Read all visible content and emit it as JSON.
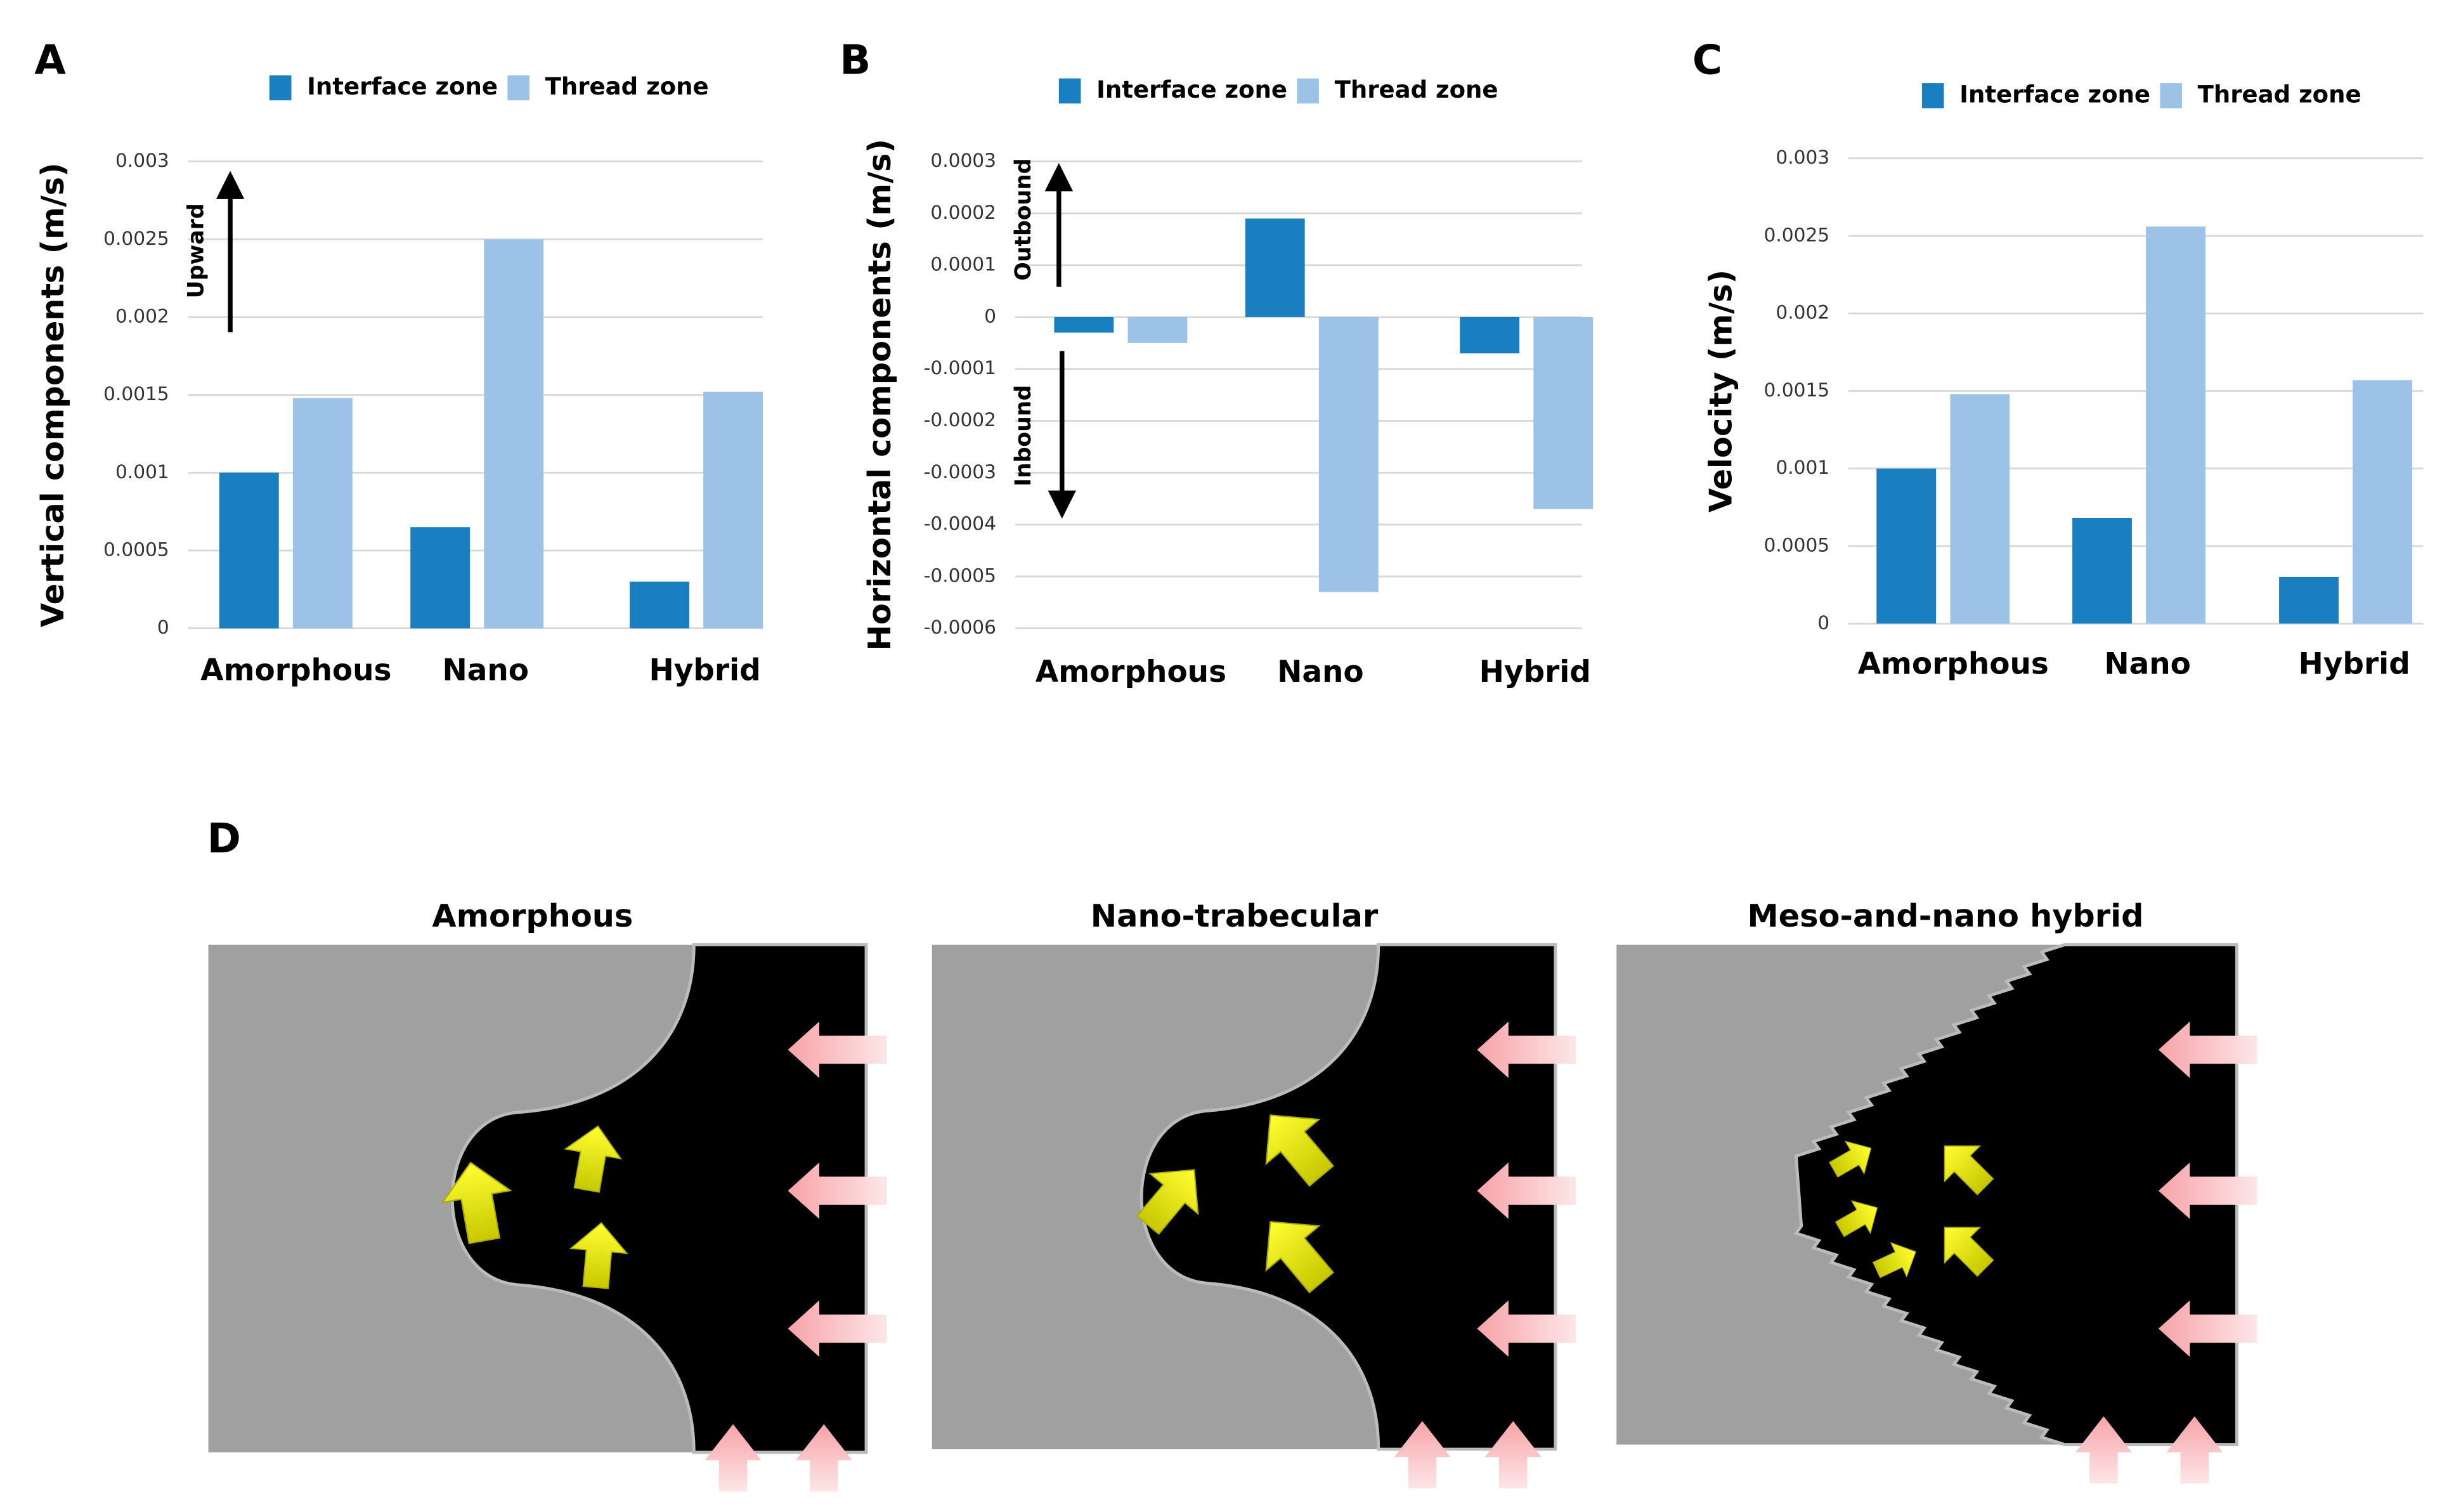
{
  "chart_data": [
    {
      "type": "bar",
      "panel": "A",
      "y_label": "Vertical components (m/s)",
      "categories": [
        "Amorphous",
        "Nano",
        "Hybrid"
      ],
      "series": [
        {
          "name": "Interface zone",
          "color": "#1a7fc1",
          "values": [
            0.001,
            0.00065,
            0.0003
          ]
        },
        {
          "name": "Thread zone",
          "color": "#9cc3e7",
          "values": [
            0.00148,
            0.0025,
            0.00152
          ]
        }
      ],
      "ylim": [
        0,
        0.003
      ],
      "yticks": [
        0,
        0.0005,
        0.001,
        0.0015,
        0.002,
        0.0025,
        0.003
      ],
      "grid": true,
      "annotations": [
        "Upward"
      ]
    },
    {
      "type": "bar",
      "panel": "B",
      "y_label": "Horizontal components (m/s)",
      "categories": [
        "Amorphous",
        "Nano",
        "Hybrid"
      ],
      "series": [
        {
          "name": "Interface zone",
          "color": "#1a7fc1",
          "values": [
            -3e-05,
            0.00019,
            -7e-05
          ]
        },
        {
          "name": "Thread zone",
          "color": "#9cc3e7",
          "values": [
            -5e-05,
            -0.00053,
            -0.00037
          ]
        }
      ],
      "ylim": [
        -0.0006,
        0.0003
      ],
      "yticks": [
        -0.0006,
        -0.0005,
        -0.0004,
        -0.0003,
        -0.0002,
        -0.0001,
        0,
        0.0001,
        0.0002,
        0.0003
      ],
      "grid": true,
      "annotations": [
        "Outbound",
        "Inbound"
      ]
    },
    {
      "type": "bar",
      "panel": "C",
      "y_label": "Velocity (m/s)",
      "categories": [
        "Amorphous",
        "Nano",
        "Hybrid"
      ],
      "series": [
        {
          "name": "Interface zone",
          "color": "#1a7fc1",
          "values": [
            0.001,
            0.00068,
            0.0003
          ]
        },
        {
          "name": "Thread zone",
          "color": "#9cc3e7",
          "values": [
            0.00148,
            0.00256,
            0.00157
          ]
        }
      ],
      "ylim": [
        0,
        0.003
      ],
      "yticks": [
        0,
        0.0005,
        0.001,
        0.0015,
        0.002,
        0.0025,
        0.003
      ],
      "grid": true,
      "annotations": []
    }
  ],
  "panel_d": {
    "panel": "D",
    "titles": [
      "Amorphous",
      "Nano-trabecular",
      "Meso-and-nano hybrid"
    ]
  }
}
